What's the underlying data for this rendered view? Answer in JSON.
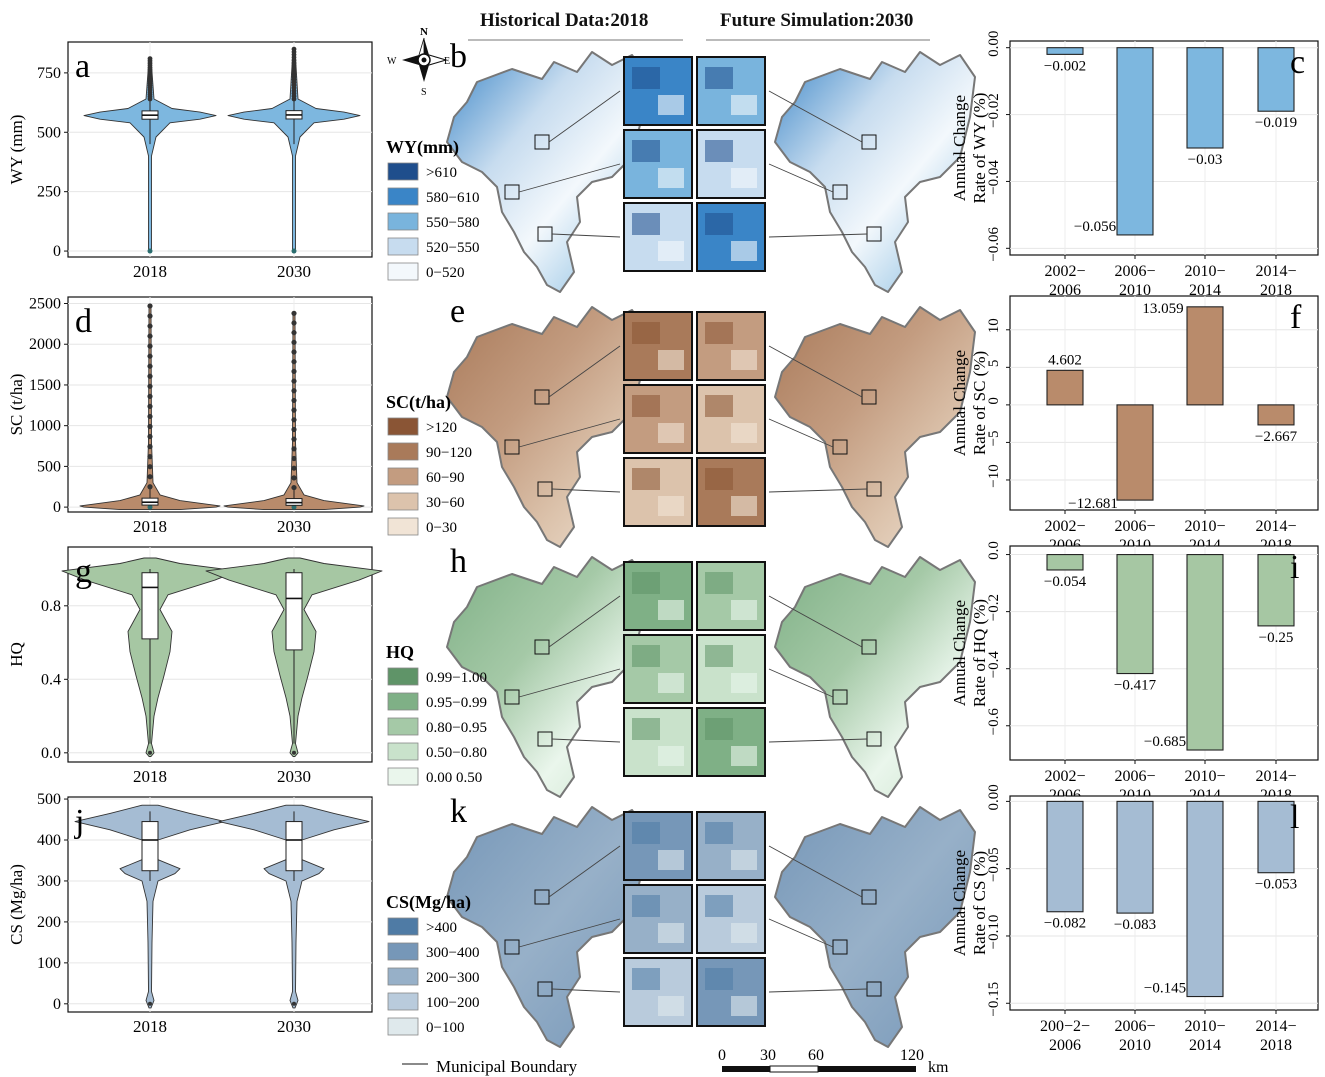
{
  "headers": {
    "historical": "Historical Data:2018",
    "future": "Future Simulation:2030"
  },
  "compass": {
    "n": "N",
    "s": "S",
    "e": "E",
    "w": "W"
  },
  "footer": {
    "boundary_label": "Municipal Boundary",
    "scale_ticks": [
      "0",
      "30",
      "60",
      "120"
    ],
    "scale_unit": "km"
  },
  "colors": {
    "wy": [
      "#1f4e8c",
      "#3a85c7",
      "#79b4dd",
      "#c7dcef",
      "#f3f8fc"
    ],
    "sc": [
      "#8a5535",
      "#a97a5a",
      "#c39c80",
      "#dcc3ac",
      "#f1e4d6"
    ],
    "hq": [
      "#5f9468",
      "#7fb086",
      "#a5c9a7",
      "#c9e2cb",
      "#eaf6ec"
    ],
    "cs": [
      "#4f7ba5",
      "#7697b8",
      "#97b0c8",
      "#b9cbdc",
      "#dfe9ec"
    ],
    "violin": {
      "wy": "#7db7df",
      "sc": "#b98b6b",
      "hq": "#a6c7a3",
      "cs": "#a5bcd3"
    }
  },
  "rows": [
    {
      "violin_letter": "a",
      "map_letter": "b",
      "bar_letter": "c",
      "legend_title": "WY(mm)",
      "legend_classes": [
        ">610",
        "580−610",
        "550−580",
        "520−550",
        "0−520"
      ]
    },
    {
      "violin_letter": "d",
      "map_letter": "e",
      "bar_letter": "f",
      "legend_title": "SC(t/ha)",
      "legend_classes": [
        ">120",
        "90−120",
        "60−90",
        "30−60",
        "0−30"
      ]
    },
    {
      "violin_letter": "g",
      "map_letter": "h",
      "bar_letter": "i",
      "legend_title": "HQ",
      "legend_classes": [
        "0.99−1.00",
        "0.95−0.99",
        "0.80−0.95",
        "0.50−0.80",
        "0.00  0.50"
      ]
    },
    {
      "violin_letter": "j",
      "map_letter": "k",
      "bar_letter": "l",
      "legend_title": "CS(Mg/ha)",
      "legend_classes": [
        ">400",
        "300−400",
        "200−300",
        "100−200",
        "0−100"
      ]
    }
  ],
  "chart_data": [
    {
      "id": "a",
      "type": "violin",
      "ylabel": "WY (mm)",
      "categories": [
        "2018",
        "2030"
      ],
      "ylim": [
        -25,
        880
      ],
      "yticks": [
        0,
        250,
        500,
        750
      ],
      "ytick_labels": [
        "0",
        "250",
        "500",
        "750"
      ],
      "series": [
        {
          "x": "2018",
          "median": 572,
          "q1": 555,
          "q3": 590,
          "whisker_low": 450,
          "whisker_high": 640,
          "min": 0,
          "max": 810
        },
        {
          "x": "2030",
          "median": 573,
          "q1": 556,
          "q3": 591,
          "whisker_low": 450,
          "whisker_high": 640,
          "min": 0,
          "max": 850
        }
      ]
    },
    {
      "id": "c",
      "type": "bar",
      "ylabel": "Annual Change\nRate of WY (%)",
      "categories": [
        "2002−\n2006",
        "2006−\n2010",
        "2010−\n2014",
        "2014−\n2018"
      ],
      "values": [
        -0.002,
        -0.056,
        -0.03,
        -0.019
      ],
      "value_labels": [
        "−0.002",
        "−0.056",
        "−0.03",
        "−0.019"
      ],
      "ylim": [
        -0.062,
        0.002
      ],
      "yticks": [
        0,
        -0.02,
        -0.04,
        -0.06
      ],
      "ytick_labels": [
        "0.00",
        "−0.02",
        "−0.04",
        "−0.06"
      ]
    },
    {
      "id": "d",
      "type": "violin",
      "ylabel": "SC (t/ha)",
      "categories": [
        "2018",
        "2030"
      ],
      "ylim": [
        -60,
        2580
      ],
      "yticks": [
        0,
        500,
        1000,
        1500,
        2000,
        2500
      ],
      "ytick_labels": [
        "0",
        "500",
        "1000",
        "1500",
        "2000",
        "2500"
      ],
      "series": [
        {
          "x": "2018",
          "median": 60,
          "q1": 25,
          "q3": 110,
          "whisker_low": 0,
          "whisker_high": 250,
          "min": 0,
          "max": 2470
        },
        {
          "x": "2030",
          "median": 55,
          "q1": 22,
          "q3": 105,
          "whisker_low": 0,
          "whisker_high": 240,
          "min": 0,
          "max": 2380
        }
      ]
    },
    {
      "id": "f",
      "type": "bar",
      "ylabel": "Annual Change\nRate of SC (%)",
      "categories": [
        "2002−\n2006",
        "2006−\n2010",
        "2010−\n2014",
        "2014−\n2018"
      ],
      "values": [
        4.602,
        -12.681,
        13.059,
        -2.667
      ],
      "value_labels": [
        "4.602",
        "−12.681",
        "13.059",
        "−2.667"
      ],
      "ylim": [
        -14,
        14.5
      ],
      "yticks": [
        10,
        5,
        0,
        -5,
        -10
      ],
      "ytick_labels": [
        "10",
        "5",
        "0",
        "−5",
        "−10"
      ]
    },
    {
      "id": "g",
      "type": "violin",
      "ylabel": "HQ",
      "categories": [
        "2018",
        "2030"
      ],
      "ylim": [
        -0.05,
        1.12
      ],
      "yticks": [
        0.0,
        0.4,
        0.8
      ],
      "ytick_labels": [
        "0.0",
        "0.4",
        "0.8"
      ],
      "series": [
        {
          "x": "2018",
          "median": 0.9,
          "q1": 0.62,
          "q3": 0.98,
          "whisker_low": 0.05,
          "whisker_high": 1.0,
          "min": 0.0,
          "max": 1.0
        },
        {
          "x": "2030",
          "median": 0.84,
          "q1": 0.56,
          "q3": 0.98,
          "whisker_low": 0.05,
          "whisker_high": 1.0,
          "min": 0.0,
          "max": 1.0
        }
      ]
    },
    {
      "id": "i",
      "type": "bar",
      "ylabel": "Annual Change\nRate of HQ (%)",
      "categories": [
        "2002−\n2006",
        "2006−\n2010",
        "2010−\n2014",
        "2014−\n2018"
      ],
      "values": [
        -0.054,
        -0.417,
        -0.685,
        -0.25
      ],
      "value_labels": [
        "−0.054",
        "−0.417",
        "−0.685",
        "−0.25"
      ],
      "ylim": [
        -0.72,
        0.03
      ],
      "yticks": [
        0,
        -0.2,
        -0.4,
        -0.6
      ],
      "ytick_labels": [
        "0.0",
        "−0.2",
        "−0.4",
        "−0.6"
      ]
    },
    {
      "id": "j",
      "type": "violin",
      "ylabel": "CS (Mg/ha)",
      "categories": [
        "2018",
        "2030"
      ],
      "ylim": [
        -20,
        505
      ],
      "yticks": [
        0,
        100,
        200,
        300,
        400,
        500
      ],
      "ytick_labels": [
        "0",
        "100",
        "200",
        "300",
        "400",
        "500"
      ],
      "series": [
        {
          "x": "2018",
          "median": 400,
          "q1": 325,
          "q3": 445,
          "whisker_low": 300,
          "whisker_high": 470,
          "min": 0,
          "max": 470
        },
        {
          "x": "2030",
          "median": 400,
          "q1": 325,
          "q3": 445,
          "whisker_low": 300,
          "whisker_high": 470,
          "min": 0,
          "max": 470
        }
      ]
    },
    {
      "id": "l",
      "type": "bar",
      "ylabel": "Annual Change\nRate of CS (%)",
      "categories": [
        "200−2−\n2006",
        "2006−\n2010",
        "2010−\n2014",
        "2014−\n2018"
      ],
      "values": [
        -0.082,
        -0.083,
        -0.145,
        -0.053
      ],
      "value_labels": [
        "−0.082",
        "−0.083",
        "−0.145",
        "−0.053"
      ],
      "ylim": [
        -0.155,
        0.004
      ],
      "yticks": [
        0,
        -0.05,
        -0.1,
        -0.15
      ],
      "ytick_labels": [
        "0.00",
        "−0.05",
        "−0.10",
        "−0.15"
      ]
    }
  ]
}
